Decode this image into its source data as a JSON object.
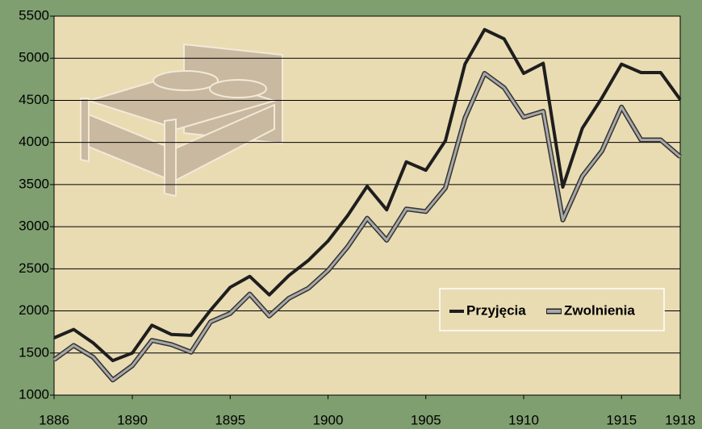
{
  "chart_data": {
    "type": "line",
    "x": [
      1886,
      1887,
      1888,
      1889,
      1890,
      1891,
      1892,
      1893,
      1894,
      1895,
      1896,
      1897,
      1898,
      1899,
      1900,
      1901,
      1902,
      1903,
      1904,
      1905,
      1906,
      1907,
      1908,
      1909,
      1910,
      1911,
      1912,
      1913,
      1914,
      1915,
      1916,
      1917,
      1918
    ],
    "series": [
      {
        "name": "Przyjęcia",
        "color": "#1e1e1e",
        "values": [
          1680,
          1780,
          1620,
          1410,
          1500,
          1830,
          1720,
          1710,
          2010,
          2280,
          2410,
          2190,
          2420,
          2600,
          2830,
          3130,
          3480,
          3200,
          3770,
          3670,
          4020,
          4930,
          5340,
          5230,
          4820,
          4940,
          3470,
          4170,
          4530,
          4930,
          4830,
          4830,
          4510
        ]
      },
      {
        "name": "Zwolnienia",
        "color": "#a8a8a8",
        "values": [
          1420,
          1590,
          1450,
          1180,
          1350,
          1650,
          1600,
          1510,
          1870,
          1970,
          2200,
          1940,
          2150,
          2270,
          2480,
          2760,
          3100,
          2840,
          3210,
          3180,
          3460,
          4290,
          4820,
          4650,
          4300,
          4370,
          3080,
          3600,
          3900,
          4420,
          4030,
          4030,
          3830
        ]
      }
    ],
    "xlim": [
      1886,
      1918
    ],
    "xticks": [
      1886,
      1890,
      1895,
      1900,
      1905,
      1910,
      1915,
      1918
    ],
    "ylim": [
      1000,
      5500
    ],
    "yticks": [
      1000,
      1500,
      2000,
      2500,
      3000,
      3500,
      4000,
      4500,
      5000,
      5500
    ],
    "grid": true
  }
}
